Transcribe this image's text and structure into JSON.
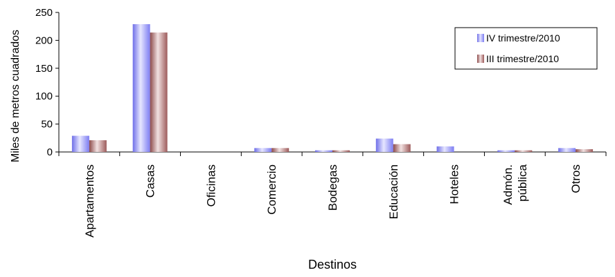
{
  "chart_data": {
    "type": "bar",
    "title": "",
    "xlabel": "Destinos",
    "ylabel": "Miles de metros cuadrados",
    "ylim": [
      0,
      250
    ],
    "yticks": [
      0,
      50,
      100,
      150,
      200,
      250
    ],
    "categories": [
      "Apartamentos",
      "Casas",
      "Oficinas",
      "Comercio",
      "Bodegas",
      "Educación",
      "Hoteles",
      "Admón. pública",
      "Otros"
    ],
    "series": [
      {
        "name": "IV trimestre/2010",
        "values": [
          29,
          229,
          0,
          7,
          3,
          24,
          10,
          3,
          7
        ],
        "color": "#7f7ff0"
      },
      {
        "name": "III trimestre/2010",
        "values": [
          21,
          214,
          0,
          7,
          3,
          14,
          0,
          3,
          5
        ],
        "color": "#a06060"
      }
    ],
    "grid": false,
    "legend": "top-right"
  }
}
